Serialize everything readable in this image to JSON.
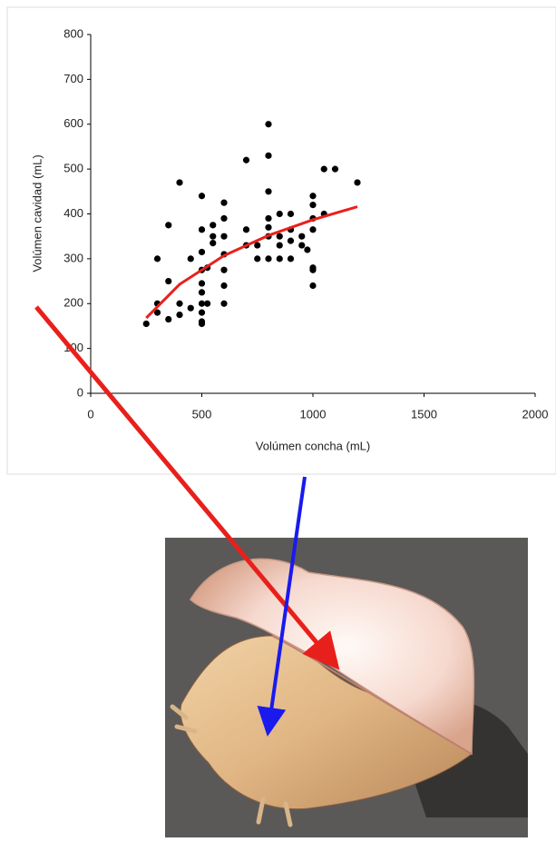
{
  "chart_data": {
    "type": "scatter",
    "xlabel": "Volúmen concha (mL)",
    "ylabel": "Volúmen cavidad (mL)",
    "xlim": [
      0,
      2000
    ],
    "xticks": [
      0,
      500,
      1000,
      1500,
      2000
    ],
    "ylim": [
      0,
      800
    ],
    "yticks": [
      0,
      100,
      200,
      300,
      400,
      500,
      600,
      700,
      800
    ],
    "series": [
      {
        "color": "#000000",
        "x": [
          250,
          300,
          300,
          300,
          350,
          350,
          350,
          400,
          400,
          400,
          450,
          450,
          500,
          500,
          500,
          500,
          500,
          500,
          500,
          500,
          500,
          500,
          525,
          525,
          550,
          550,
          550,
          600,
          600,
          600,
          600,
          600,
          600,
          600,
          700,
          700,
          700,
          750,
          750,
          800,
          800,
          800,
          800,
          800,
          800,
          800,
          850,
          850,
          850,
          850,
          900,
          900,
          900,
          900,
          950,
          950,
          975,
          1000,
          1000,
          1000,
          1000,
          1000,
          1000,
          1000,
          1050,
          1050,
          1100,
          1200
        ],
        "values": [
          155,
          200,
          180,
          300,
          375,
          250,
          165,
          470,
          200,
          175,
          300,
          190,
          440,
          365,
          315,
          275,
          245,
          225,
          200,
          180,
          160,
          155,
          200,
          280,
          350,
          375,
          335,
          425,
          390,
          350,
          310,
          275,
          240,
          200,
          520,
          365,
          330,
          300,
          330,
          600,
          530,
          450,
          390,
          370,
          350,
          300,
          400,
          350,
          330,
          300,
          400,
          365,
          340,
          300,
          350,
          330,
          320,
          440,
          420,
          390,
          365,
          280,
          275,
          240,
          500,
          400,
          500,
          470
        ]
      }
    ],
    "trend": {
      "color": "#e8201c",
      "x": [
        250,
        400,
        600,
        800,
        1000,
        1200
      ],
      "values": [
        168,
        243,
        307,
        352,
        387,
        416
      ]
    }
  }
}
